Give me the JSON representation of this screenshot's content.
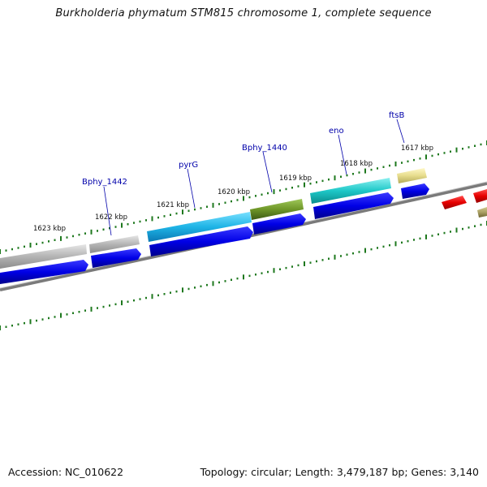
{
  "title": "Burkholderia phymatum STM815 chromosome 1, complete sequence",
  "footer": {
    "accession": "Accession: NC_010622",
    "summary": "Topology: circular; Length: 3,479,187 bp; Genes: 3,140"
  },
  "kbp_labels": [
    "1623 kbp",
    "1622 kbp",
    "1621 kbp",
    "1620 kbp",
    "1619 kbp",
    "1618 kbp",
    "1617 kbp"
  ],
  "gene_labels": [
    "Bphy_1442",
    "pyrG",
    "Bphy_1440",
    "eno",
    "ftsB"
  ],
  "colors": {
    "gene_gray": "#b4b4b4",
    "gene_cyan": "#1eb4e6",
    "gene_olive": "#6e9628",
    "gene_teal": "#1ec8c8",
    "gene_yellow": "#e6dc8c",
    "gene_red": "#e60000",
    "gene_khaki": "#aaa064",
    "cds_blue": "#0000e6",
    "tick_green": "#1e781e",
    "backbone": "#888888"
  }
}
